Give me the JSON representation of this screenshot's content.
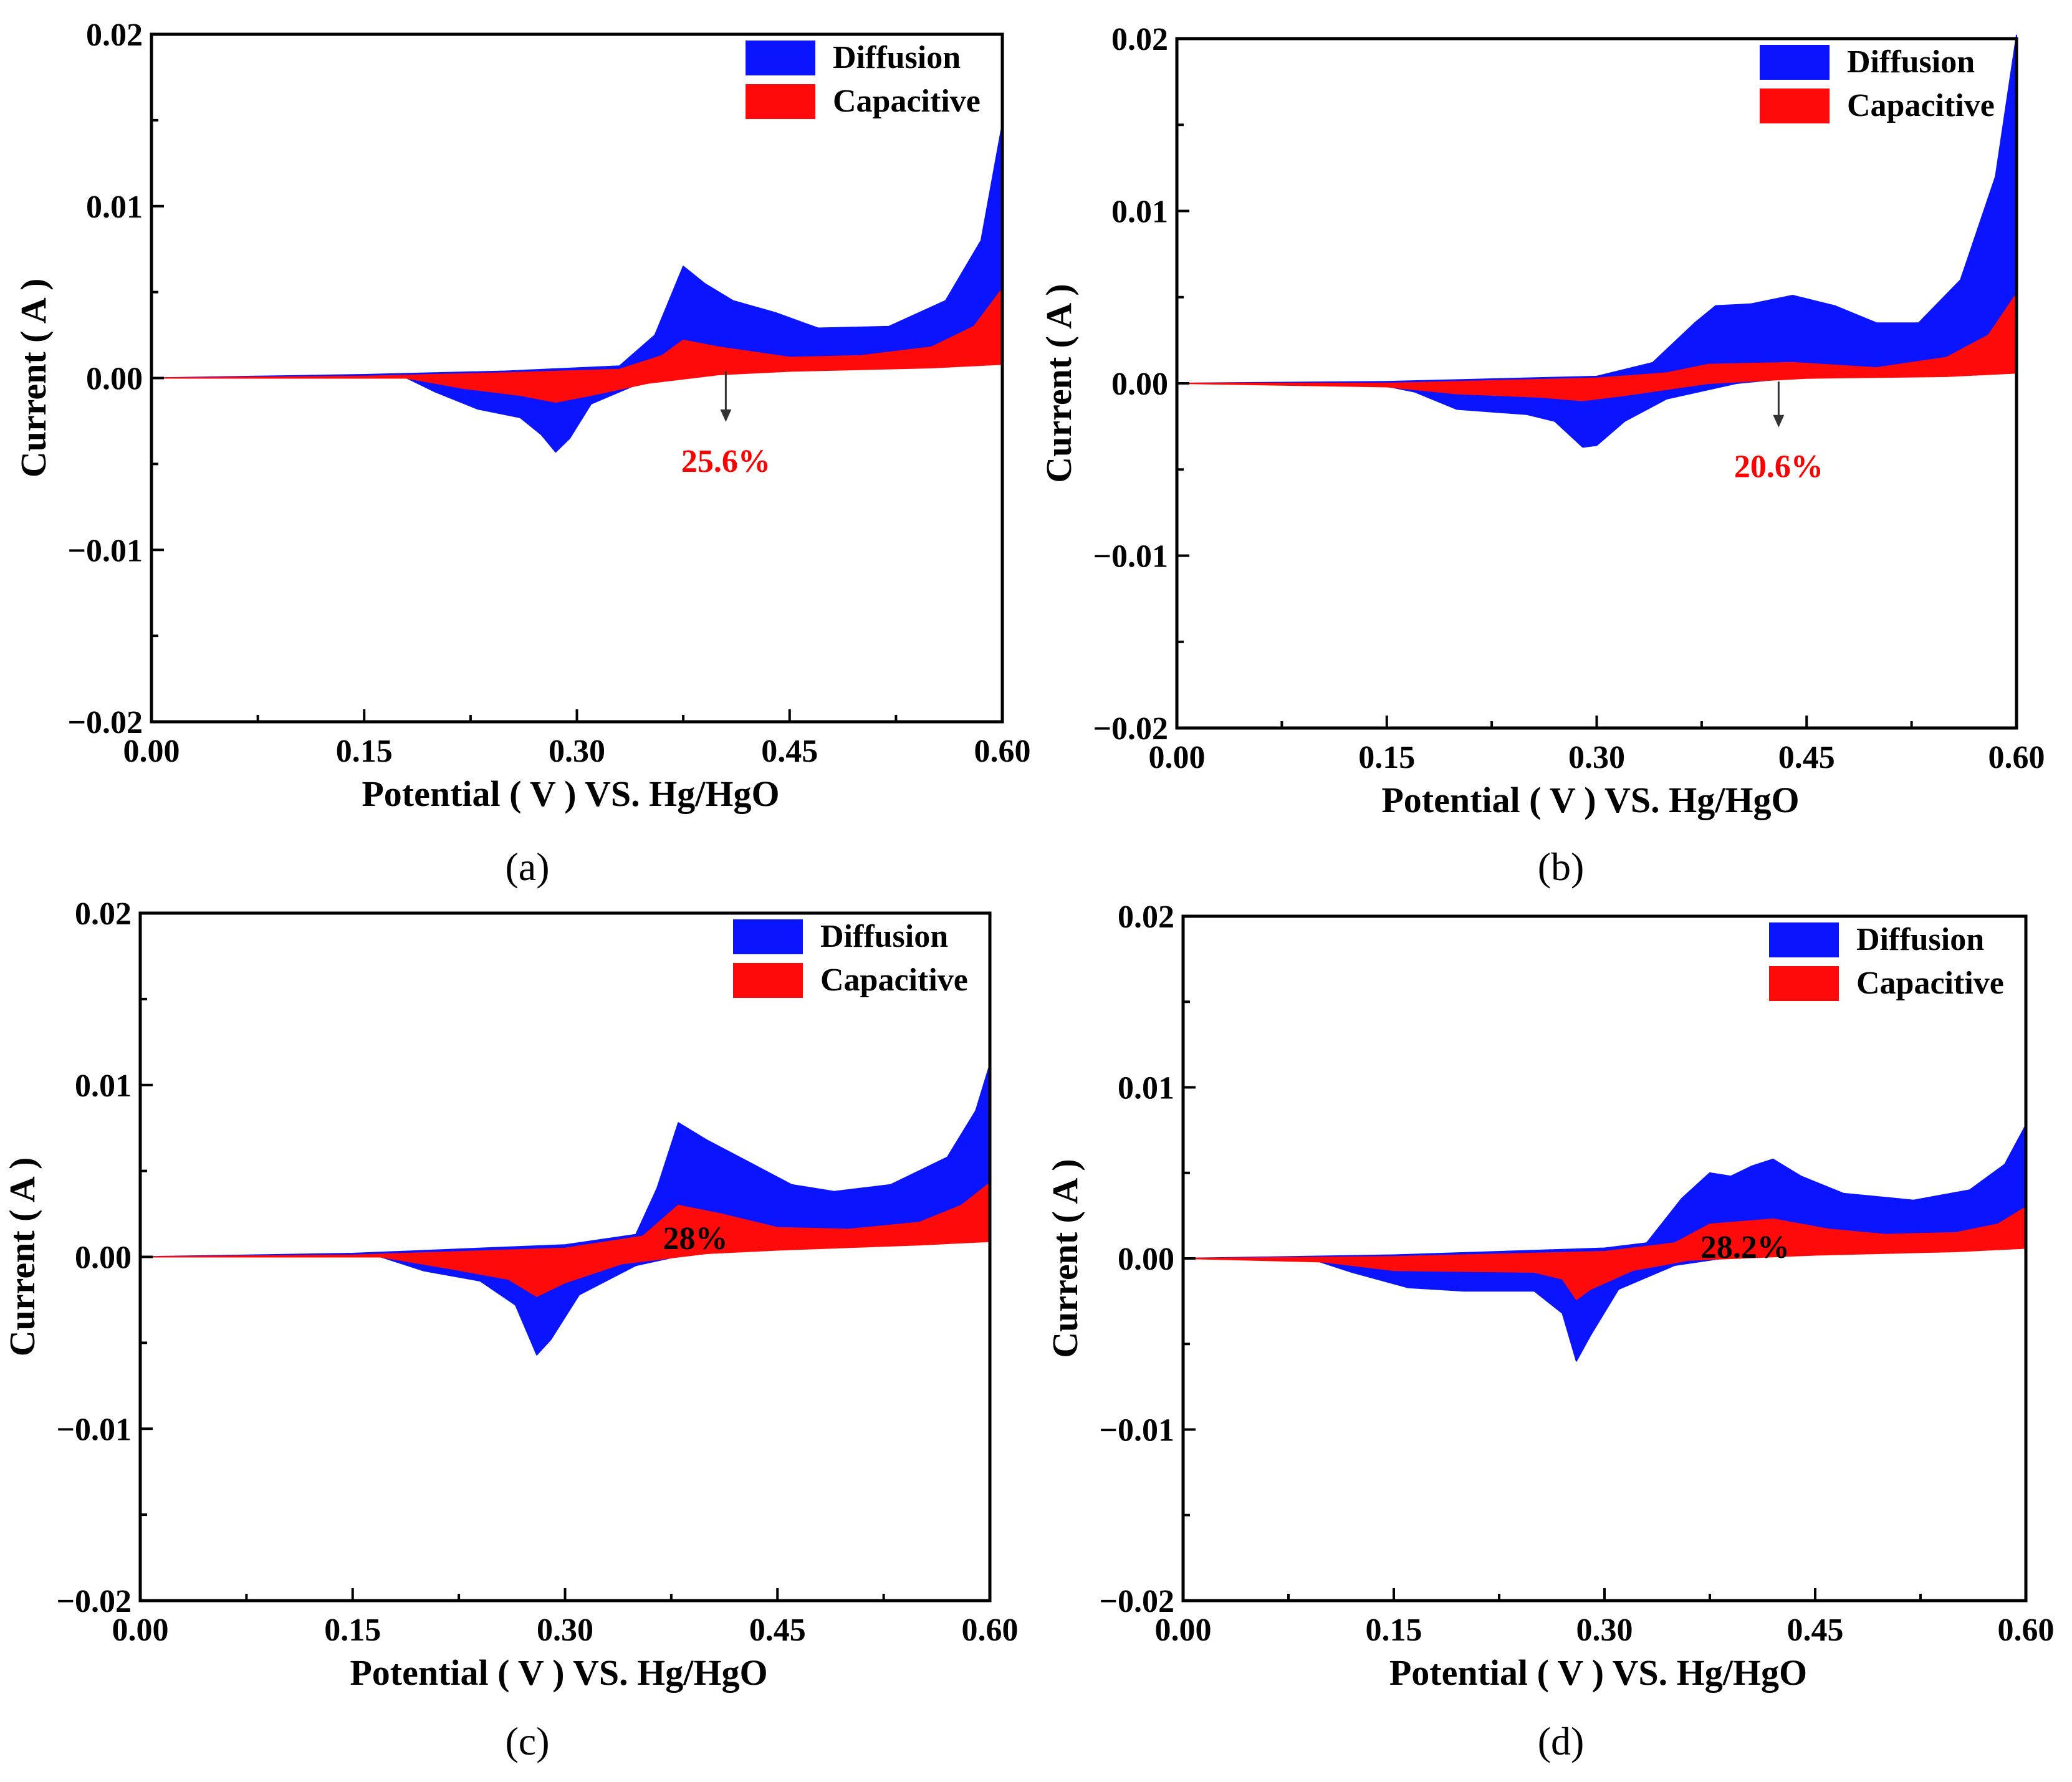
{
  "figure": {
    "panels": [
      "(a)",
      "(b)",
      "(c)",
      "(d)"
    ],
    "colors": {
      "diffusion": "#0a14ff",
      "capacitive": "#ff0a0a",
      "annotation_red": "#ff0000",
      "annotation_black": "#000000"
    }
  },
  "chart_data": [
    {
      "panel": "(a)",
      "type": "area",
      "xlabel": "Potential ( V ) VS. Hg/HgO",
      "ylabel": "Current ( A )",
      "xlim": [
        0.0,
        0.6
      ],
      "ylim": [
        -0.02,
        0.02
      ],
      "xticks": [
        "0.00",
        "0.15",
        "0.30",
        "0.45",
        "0.60"
      ],
      "yticks": [
        "0.02",
        "0.01",
        "0.00",
        "−0.01",
        "−0.02"
      ],
      "legend": [
        "Diffusion",
        "Capacitive"
      ],
      "annotation": {
        "text": "25.6%",
        "color": "#ff0000",
        "x": 0.405,
        "y": -0.0048,
        "arrow_from_y": 0.0004
      },
      "series": [
        {
          "name": "Diffusion",
          "upper": [
            [
              0.0,
              0.0
            ],
            [
              0.15,
              0.0002
            ],
            [
              0.25,
              0.0004
            ],
            [
              0.33,
              0.0007
            ],
            [
              0.355,
              0.0025
            ],
            [
              0.375,
              0.0065
            ],
            [
              0.39,
              0.0055
            ],
            [
              0.41,
              0.0045
            ],
            [
              0.44,
              0.0038
            ],
            [
              0.47,
              0.0029
            ],
            [
              0.52,
              0.003
            ],
            [
              0.56,
              0.0045
            ],
            [
              0.585,
              0.008
            ],
            [
              0.6,
              0.0148
            ]
          ],
          "lower": [
            [
              0.0,
              0.0
            ],
            [
              0.18,
              0.0
            ],
            [
              0.2,
              -0.0008
            ],
            [
              0.23,
              -0.0018
            ],
            [
              0.26,
              -0.0023
            ],
            [
              0.275,
              -0.0033
            ],
            [
              0.285,
              -0.0043
            ],
            [
              0.295,
              -0.0035
            ],
            [
              0.31,
              -0.0015
            ],
            [
              0.35,
              -0.0001
            ],
            [
              0.4,
              0.0003
            ],
            [
              0.45,
              0.0005
            ],
            [
              0.55,
              0.0008
            ],
            [
              0.6,
              0.001
            ]
          ]
        },
        {
          "name": "Capacitive",
          "upper": [
            [
              0.0,
              0.0
            ],
            [
              0.15,
              0.0001
            ],
            [
              0.25,
              0.0003
            ],
            [
              0.33,
              0.0005
            ],
            [
              0.36,
              0.0013
            ],
            [
              0.375,
              0.0022
            ],
            [
              0.4,
              0.0018
            ],
            [
              0.45,
              0.0012
            ],
            [
              0.5,
              0.0013
            ],
            [
              0.55,
              0.0018
            ],
            [
              0.58,
              0.003
            ],
            [
              0.6,
              0.0052
            ]
          ],
          "lower": [
            [
              0.0,
              0.0
            ],
            [
              0.18,
              0.0
            ],
            [
              0.22,
              -0.0006
            ],
            [
              0.26,
              -0.001
            ],
            [
              0.285,
              -0.0014
            ],
            [
              0.31,
              -0.001
            ],
            [
              0.35,
              -0.0003
            ],
            [
              0.4,
              0.0002
            ],
            [
              0.45,
              0.0004
            ],
            [
              0.55,
              0.0006
            ],
            [
              0.6,
              0.0008
            ]
          ]
        }
      ]
    },
    {
      "panel": "(b)",
      "type": "area",
      "xlabel": "Potential ( V ) VS. Hg/HgO",
      "ylabel": "Current ( A )",
      "xlim": [
        0.0,
        0.6
      ],
      "ylim": [
        -0.02,
        0.02
      ],
      "xticks": [
        "0.00",
        "0.15",
        "0.30",
        "0.45",
        "0.60"
      ],
      "yticks": [
        "0.02",
        "0.01",
        "0.00",
        "−0.01",
        "−0.02"
      ],
      "legend": [
        "Diffusion",
        "Capacitive"
      ],
      "annotation": {
        "text": "20.6%",
        "color": "#ff0000",
        "x": 0.43,
        "y": -0.0048,
        "arrow_from_y": 0.0001
      },
      "series": [
        {
          "name": "Diffusion",
          "upper": [
            [
              0.0,
              0.0
            ],
            [
              0.15,
              0.0001
            ],
            [
              0.3,
              0.0004
            ],
            [
              0.34,
              0.0012
            ],
            [
              0.37,
              0.0035
            ],
            [
              0.385,
              0.0045
            ],
            [
              0.41,
              0.0046
            ],
            [
              0.44,
              0.0051
            ],
            [
              0.47,
              0.0045
            ],
            [
              0.5,
              0.0035
            ],
            [
              0.53,
              0.0035
            ],
            [
              0.56,
              0.006
            ],
            [
              0.585,
              0.012
            ],
            [
              0.6,
              0.0202
            ]
          ],
          "lower": [
            [
              0.0,
              0.0
            ],
            [
              0.14,
              0.0
            ],
            [
              0.17,
              -0.0005
            ],
            [
              0.2,
              -0.0015
            ],
            [
              0.25,
              -0.0018
            ],
            [
              0.27,
              -0.0022
            ],
            [
              0.29,
              -0.0037
            ],
            [
              0.3,
              -0.0036
            ],
            [
              0.32,
              -0.0022
            ],
            [
              0.35,
              -0.0009
            ],
            [
              0.4,
              0.0
            ],
            [
              0.45,
              0.0004
            ],
            [
              0.55,
              0.0006
            ],
            [
              0.6,
              0.0008
            ]
          ]
        },
        {
          "name": "Capacitive",
          "upper": [
            [
              0.0,
              0.0
            ],
            [
              0.15,
              0.0
            ],
            [
              0.3,
              0.0003
            ],
            [
              0.35,
              0.0006
            ],
            [
              0.38,
              0.0011
            ],
            [
              0.44,
              0.0012
            ],
            [
              0.5,
              0.0009
            ],
            [
              0.55,
              0.0015
            ],
            [
              0.58,
              0.0028
            ],
            [
              0.6,
              0.0052
            ]
          ],
          "lower": [
            [
              0.0,
              0.0
            ],
            [
              0.15,
              -0.0002
            ],
            [
              0.2,
              -0.0006
            ],
            [
              0.26,
              -0.0008
            ],
            [
              0.29,
              -0.001
            ],
            [
              0.32,
              -0.0007
            ],
            [
              0.38,
              0.0
            ],
            [
              0.45,
              0.0003
            ],
            [
              0.55,
              0.0004
            ],
            [
              0.6,
              0.0006
            ]
          ]
        }
      ]
    },
    {
      "panel": "(c)",
      "type": "area",
      "xlabel": "Potential ( V ) VS. Hg/HgO",
      "ylabel": "Current ( A )",
      "xlim": [
        0.0,
        0.6
      ],
      "ylim": [
        -0.02,
        0.02
      ],
      "xticks": [
        "0.00",
        "0.15",
        "0.30",
        "0.45",
        "0.60"
      ],
      "yticks": [
        "0.02",
        "0.01",
        "0.00",
        "−0.01",
        "−0.02"
      ],
      "legend": [
        "Diffusion",
        "Capacitive"
      ],
      "annotation": {
        "text": "28%",
        "color": "#000000",
        "x": 0.392,
        "y": 0.0011
      },
      "series": [
        {
          "name": "Diffusion",
          "upper": [
            [
              0.0,
              0.0
            ],
            [
              0.15,
              0.0002
            ],
            [
              0.3,
              0.0007
            ],
            [
              0.35,
              0.0013
            ],
            [
              0.365,
              0.004
            ],
            [
              0.38,
              0.0078
            ],
            [
              0.4,
              0.0068
            ],
            [
              0.43,
              0.0055
            ],
            [
              0.46,
              0.0042
            ],
            [
              0.49,
              0.0038
            ],
            [
              0.53,
              0.0042
            ],
            [
              0.57,
              0.0058
            ],
            [
              0.59,
              0.0085
            ],
            [
              0.6,
              0.0112
            ]
          ],
          "lower": [
            [
              0.0,
              0.0
            ],
            [
              0.17,
              0.0
            ],
            [
              0.2,
              -0.0008
            ],
            [
              0.24,
              -0.0014
            ],
            [
              0.265,
              -0.0028
            ],
            [
              0.28,
              -0.0057
            ],
            [
              0.29,
              -0.0048
            ],
            [
              0.31,
              -0.0022
            ],
            [
              0.35,
              -0.0005
            ],
            [
              0.4,
              0.0004
            ],
            [
              0.45,
              0.0007
            ],
            [
              0.55,
              0.001
            ],
            [
              0.6,
              0.0012
            ]
          ]
        },
        {
          "name": "Capacitive",
          "upper": [
            [
              0.0,
              0.0
            ],
            [
              0.15,
              0.0001
            ],
            [
              0.3,
              0.0005
            ],
            [
              0.355,
              0.0012
            ],
            [
              0.38,
              0.003
            ],
            [
              0.41,
              0.0025
            ],
            [
              0.45,
              0.0017
            ],
            [
              0.5,
              0.0016
            ],
            [
              0.55,
              0.002
            ],
            [
              0.58,
              0.003
            ],
            [
              0.6,
              0.0043
            ]
          ],
          "lower": [
            [
              0.0,
              0.0
            ],
            [
              0.17,
              0.0
            ],
            [
              0.22,
              -0.0007
            ],
            [
              0.26,
              -0.0013
            ],
            [
              0.28,
              -0.0023
            ],
            [
              0.3,
              -0.0015
            ],
            [
              0.34,
              -0.0004
            ],
            [
              0.4,
              0.0002
            ],
            [
              0.45,
              0.0004
            ],
            [
              0.55,
              0.0007
            ],
            [
              0.6,
              0.0009
            ]
          ]
        }
      ]
    },
    {
      "panel": "(d)",
      "type": "area",
      "xlabel": "Potential ( V ) VS. Hg/HgO",
      "ylabel": "Current ( A )",
      "xlim": [
        0.0,
        0.6
      ],
      "ylim": [
        -0.02,
        0.02
      ],
      "xticks": [
        "0.00",
        "0.15",
        "0.30",
        "0.45",
        "0.60"
      ],
      "yticks": [
        "0.02",
        "0.01",
        "0.00",
        "−0.01",
        "−0.02"
      ],
      "legend": [
        "Diffusion",
        "Capacitive"
      ],
      "annotation": {
        "text": "28.2%",
        "color": "#000000",
        "x": 0.4,
        "y": 0.0007
      },
      "series": [
        {
          "name": "Diffusion",
          "upper": [
            [
              0.0,
              0.0
            ],
            [
              0.15,
              0.0002
            ],
            [
              0.3,
              0.0006
            ],
            [
              0.33,
              0.0009
            ],
            [
              0.355,
              0.0035
            ],
            [
              0.375,
              0.005
            ],
            [
              0.39,
              0.0048
            ],
            [
              0.405,
              0.0054
            ],
            [
              0.42,
              0.0058
            ],
            [
              0.44,
              0.0048
            ],
            [
              0.47,
              0.0038
            ],
            [
              0.52,
              0.0034
            ],
            [
              0.56,
              0.004
            ],
            [
              0.585,
              0.0055
            ],
            [
              0.6,
              0.0078
            ]
          ],
          "lower": [
            [
              0.0,
              0.0
            ],
            [
              0.09,
              0.0
            ],
            [
              0.12,
              -0.0008
            ],
            [
              0.16,
              -0.0017
            ],
            [
              0.2,
              -0.0019
            ],
            [
              0.25,
              -0.0019
            ],
            [
              0.27,
              -0.0032
            ],
            [
              0.28,
              -0.006
            ],
            [
              0.29,
              -0.0045
            ],
            [
              0.31,
              -0.0018
            ],
            [
              0.35,
              -0.0004
            ],
            [
              0.4,
              0.0002
            ],
            [
              0.5,
              0.0006
            ],
            [
              0.6,
              0.0009
            ]
          ]
        },
        {
          "name": "Capacitive",
          "upper": [
            [
              0.0,
              0.0
            ],
            [
              0.15,
              0.0001
            ],
            [
              0.3,
              0.0004
            ],
            [
              0.35,
              0.0009
            ],
            [
              0.375,
              0.002
            ],
            [
              0.42,
              0.0023
            ],
            [
              0.46,
              0.0017
            ],
            [
              0.5,
              0.0014
            ],
            [
              0.55,
              0.0015
            ],
            [
              0.58,
              0.002
            ],
            [
              0.6,
              0.003
            ]
          ],
          "lower": [
            [
              0.0,
              0.0
            ],
            [
              0.1,
              -0.0002
            ],
            [
              0.15,
              -0.0007
            ],
            [
              0.25,
              -0.0008
            ],
            [
              0.27,
              -0.0012
            ],
            [
              0.28,
              -0.0024
            ],
            [
              0.29,
              -0.0018
            ],
            [
              0.32,
              -0.0007
            ],
            [
              0.36,
              -0.0001
            ],
            [
              0.45,
              0.0002
            ],
            [
              0.55,
              0.0004
            ],
            [
              0.6,
              0.0006
            ]
          ]
        }
      ]
    }
  ]
}
